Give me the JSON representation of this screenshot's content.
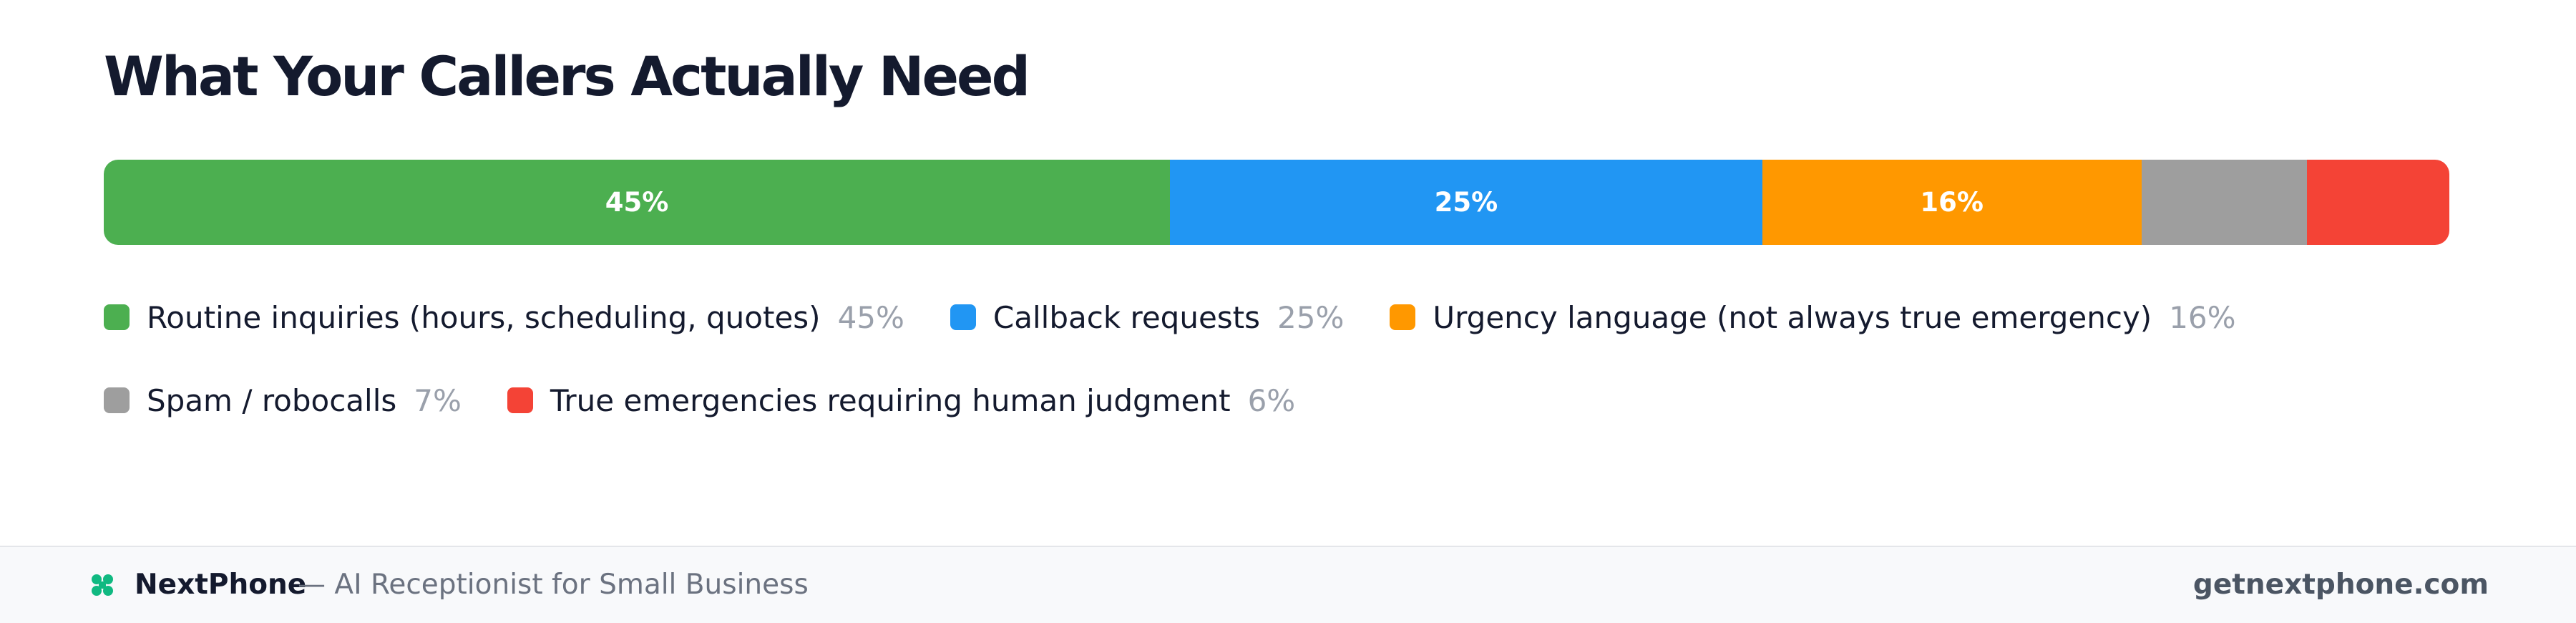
{
  "chart_data": {
    "type": "stacked-bar",
    "title": "What Your Callers Actually Need",
    "series": [
      {
        "name": "Routine inquiries (hours, scheduling, quotes)",
        "color": "#4caf50",
        "values": [
          45
        ],
        "value_labels": [
          "45%"
        ]
      },
      {
        "name": "Callback requests",
        "color": "#2196f3",
        "values": [
          25
        ],
        "value_labels": [
          "25%"
        ]
      },
      {
        "name": "Urgency language (not always true emergency)",
        "color": "#ff9800",
        "values": [
          16
        ],
        "value_labels": [
          "16%"
        ]
      },
      {
        "name": "Spam / robocalls",
        "color": "#9e9e9e",
        "values": [
          7
        ],
        "value_labels": [
          "7%"
        ]
      },
      {
        "name": "True emergencies requiring human judgment",
        "color": "#f44336",
        "values": [
          6
        ],
        "value_labels": [
          "6%"
        ]
      }
    ]
  },
  "footer": {
    "brand": "NextPhone",
    "tagline": "— AI Receptionist for Small Business",
    "url": "getnextphone.com"
  }
}
